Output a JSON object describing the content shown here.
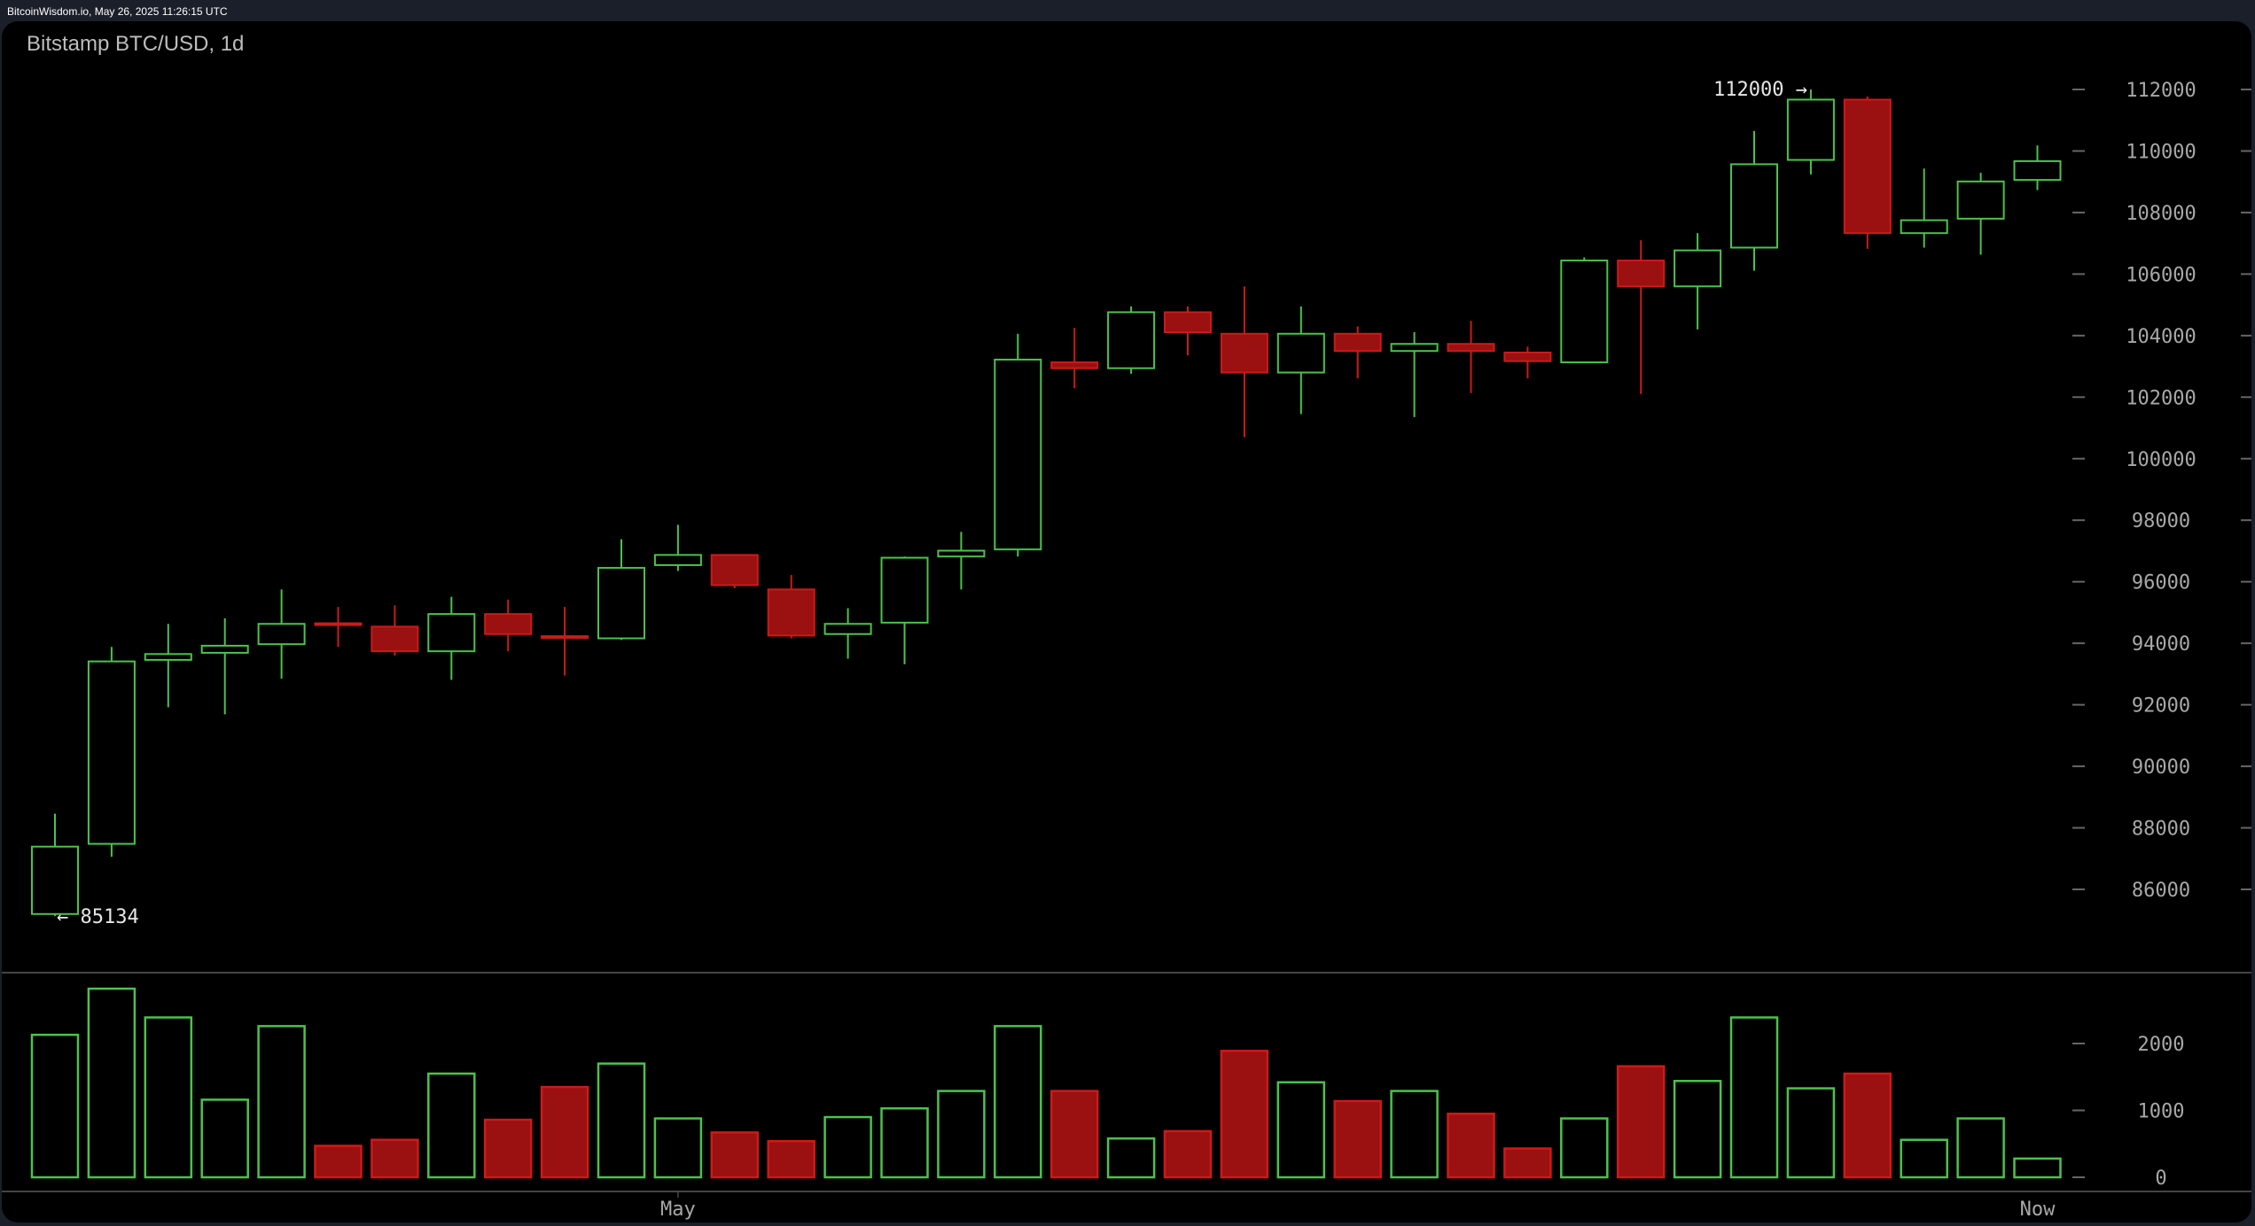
{
  "header": {
    "source": "BitcoinWisdom.io, May 26, 2025 11:26:15 UTC"
  },
  "chart_title": "Bitstamp BTC/USD, 1d",
  "chart_data": {
    "type": "candlestick",
    "title": "Bitstamp BTC/USD, 1d",
    "colors": {
      "up": "#4cc24c",
      "down": "#9b1010",
      "down_border": "#cc1a1a"
    },
    "price_axis": {
      "range": [
        83000,
        113500
      ],
      "ticks": [
        112000,
        110000,
        108000,
        106000,
        104000,
        102000,
        100000,
        98000,
        96000,
        94000,
        92000,
        90000,
        88000,
        86000
      ]
    },
    "volume_axis": {
      "range": [
        0,
        3000
      ],
      "ticks": [
        2000,
        1000,
        0
      ]
    },
    "x_ticks": [
      {
        "index": 11,
        "label": "May"
      },
      {
        "index": 35,
        "label": "Now"
      }
    ],
    "annotations": {
      "high": "112000 →",
      "low": "← 85134"
    },
    "candles": [
      [
        85200,
        88460,
        85134,
        87390
      ],
      [
        87480,
        93880,
        87060,
        93410
      ],
      [
        93460,
        94630,
        91920,
        93650
      ],
      [
        93690,
        94810,
        91690,
        93920
      ],
      [
        93970,
        95750,
        92850,
        94630
      ],
      [
        94650,
        95180,
        93880,
        94600
      ],
      [
        94540,
        95230,
        93600,
        93740
      ],
      [
        93740,
        95510,
        92810,
        94950
      ],
      [
        94950,
        95420,
        93740,
        94300
      ],
      [
        94230,
        95180,
        92950,
        94180
      ],
      [
        94160,
        97380,
        94110,
        96450
      ],
      [
        96540,
        97850,
        96350,
        96870
      ],
      [
        96870,
        96870,
        95790,
        95890
      ],
      [
        95750,
        96220,
        94160,
        94250
      ],
      [
        94300,
        95140,
        93500,
        94630
      ],
      [
        94670,
        96820,
        93320,
        96780
      ],
      [
        96820,
        97620,
        95750,
        97010
      ],
      [
        97050,
        104060,
        96820,
        103220
      ],
      [
        103130,
        104250,
        102290,
        102940
      ],
      [
        102940,
        104950,
        102760,
        104760
      ],
      [
        104760,
        104950,
        103360,
        104110
      ],
      [
        104060,
        105600,
        100700,
        102800
      ],
      [
        102800,
        104950,
        101450,
        104060
      ],
      [
        104060,
        104300,
        102610,
        103500
      ],
      [
        103500,
        104110,
        101350,
        103730
      ],
      [
        103730,
        104480,
        102130,
        103500
      ],
      [
        103450,
        103640,
        102610,
        103170
      ],
      [
        103130,
        106540,
        103130,
        106440
      ],
      [
        106440,
        107100,
        102100,
        105600
      ],
      [
        105600,
        107330,
        104200,
        106770
      ],
      [
        106860,
        110650,
        106110,
        109570
      ],
      [
        109710,
        112000,
        109240,
        111670
      ],
      [
        111670,
        111770,
        106820,
        107330
      ],
      [
        107330,
        109430,
        106860,
        107750
      ],
      [
        107800,
        109290,
        106630,
        109010
      ],
      [
        109060,
        110180,
        108730,
        109670
      ]
    ],
    "candle_fields": [
      "open",
      "high",
      "low",
      "close"
    ],
    "volume": [
      2130,
      2820,
      2390,
      1160,
      2260,
      470,
      560,
      1550,
      860,
      1350,
      1700,
      880,
      670,
      540,
      900,
      1030,
      1290,
      2260,
      1290,
      580,
      690,
      1890,
      1420,
      1140,
      1290,
      950,
      430,
      880,
      1660,
      1440,
      2390,
      1330,
      1550,
      560,
      880,
      280
    ]
  }
}
